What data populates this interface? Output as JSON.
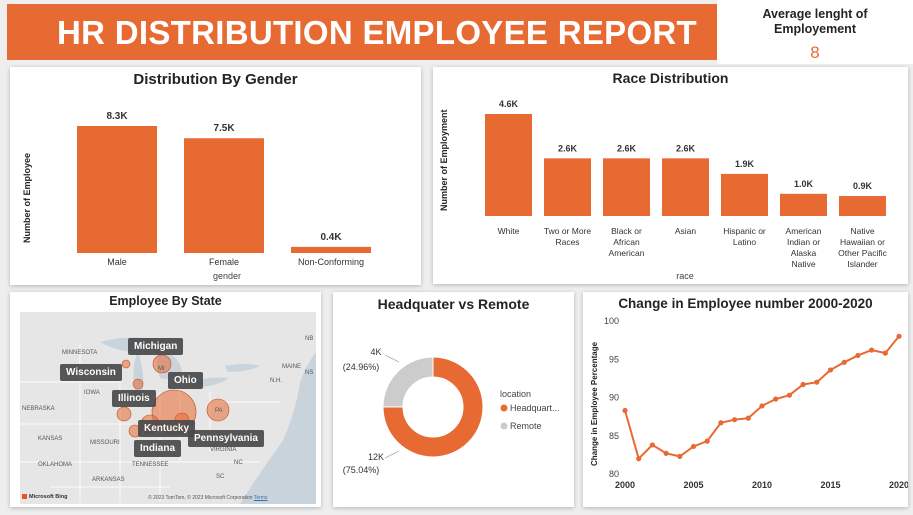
{
  "header": {
    "title": "HR  DISTRIBUTION EMPLOYEE REPORT"
  },
  "kpi": {
    "label_line1": "Average lenght of",
    "label_line2": "Employement",
    "value": "8"
  },
  "gender": {
    "title": "Distribution By Gender",
    "ylabel": "Number of Employee",
    "xlabel": "gender"
  },
  "race": {
    "title": "Race Distribution",
    "ylabel": "Number of Employment",
    "xlabel": "race"
  },
  "state": {
    "title": "Employee By State",
    "labels": {
      "michigan": "Michigan",
      "wisconsin": "Wisconsin",
      "ohio": "Ohio",
      "illinois": "Illinois",
      "kentucky": "Kentucky",
      "pennsylvania": "Pennsylvania",
      "indiana": "Indiana"
    },
    "map_text": {
      "minnesota": "MINNESOTA",
      "iowa": "IOWA",
      "nebraska": "NEBRASKA",
      "kansas": "KANSAS",
      "missouri": "MISSOURI",
      "oklahoma": "OKLAHOMA",
      "arkansas": "ARKANSAS",
      "tennessee": "TENNESSEE",
      "virginia": "VIRGINIA",
      "maine": "MAINE",
      "nh": "N.H.",
      "mi": "MI",
      "oh": "OH",
      "pa": "PA",
      "nc": "NC",
      "sc": "SC",
      "ns": "NS",
      "nb": "NB"
    },
    "attribution": "© 2023 TomTom, © 2023 Microsoft Corporation",
    "terms": "Terms",
    "bing": "Microsoft Bing"
  },
  "location": {
    "title": "Headquater vs Remote",
    "legend_title": "location",
    "legend_items": [
      "Headquart...",
      "Remote"
    ],
    "remote_label_value": "4K",
    "remote_label_pct": "(24.96%)",
    "hq_label_value": "12K",
    "hq_label_pct": "(75.04%)"
  },
  "change": {
    "title": "Change in Employee number 2000-2020",
    "ylabel": "Change in Employee Percentage"
  },
  "colors": {
    "accent": "#e86a33",
    "remote": "#cccccc",
    "map_label": "#4a4a4a"
  },
  "chart_data": [
    {
      "type": "bar",
      "title": "Distribution By Gender",
      "xlabel": "gender",
      "ylabel": "Number of Employee",
      "categories": [
        "Male",
        "Female",
        "Non-Conforming"
      ],
      "values": [
        8300,
        7500,
        400
      ],
      "data_labels": [
        "8.3K",
        "7.5K",
        "0.4K"
      ],
      "ylim": [
        0,
        8300
      ]
    },
    {
      "type": "bar",
      "title": "Race Distribution",
      "xlabel": "race",
      "ylabel": "Number of Employment",
      "categories": [
        [
          "White"
        ],
        [
          "Two or More",
          "Races"
        ],
        [
          "Black or",
          "African",
          "American"
        ],
        [
          "Asian"
        ],
        [
          "Hispanic or",
          "Latino"
        ],
        [
          "American",
          "Indian or",
          "Alaska",
          "Native"
        ],
        [
          "Native",
          "Hawaiian or",
          "Other Pacific",
          "Islander"
        ]
      ],
      "values": [
        4600,
        2600,
        2600,
        2600,
        1900,
        1000,
        900
      ],
      "data_labels": [
        "4.6K",
        "2.6K",
        "2.6K",
        "2.6K",
        "1.9K",
        "1.0K",
        "0.9K"
      ],
      "ylim": [
        0,
        4600
      ]
    },
    {
      "type": "pie",
      "title": "Headquater vs Remote",
      "categories": [
        "Headquart...",
        "Remote"
      ],
      "values": [
        75.04,
        24.96
      ],
      "data_labels": [
        "12K (75.04%)",
        "4K (24.96%)"
      ],
      "legend": "right"
    },
    {
      "type": "line",
      "title": "Change in Employee number 2000-2020",
      "ylabel": "Change in Employee Percentage",
      "x": [
        2000,
        2001,
        2002,
        2003,
        2004,
        2005,
        2006,
        2007,
        2008,
        2009,
        2010,
        2011,
        2012,
        2013,
        2014,
        2015,
        2016,
        2017,
        2018,
        2019,
        2020
      ],
      "y": [
        88.3,
        82.0,
        83.8,
        82.7,
        82.3,
        83.6,
        84.3,
        86.7,
        87.1,
        87.3,
        88.9,
        89.8,
        90.3,
        91.7,
        92.0,
        93.6,
        94.6,
        95.5,
        96.2,
        95.8,
        98.0
      ],
      "xticks": [
        2000,
        2005,
        2010,
        2015,
        2020
      ],
      "yticks": [
        80,
        85,
        90,
        95,
        100
      ],
      "xlim": [
        2000,
        2020
      ],
      "ylim": [
        80,
        100
      ],
      "grid": false
    }
  ]
}
